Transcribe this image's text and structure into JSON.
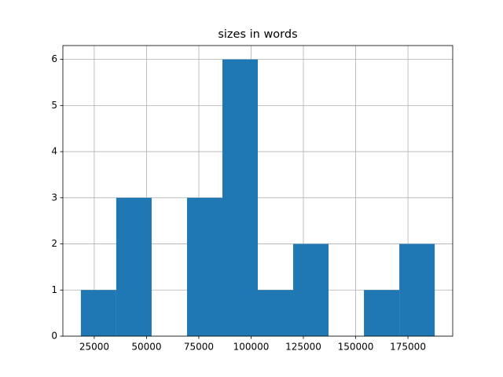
{
  "chart_data": {
    "type": "histogram",
    "title": "sizes in words",
    "bins": [
      18600,
      35520,
      52440,
      69360,
      86280,
      103200,
      120120,
      137040,
      153960,
      170880,
      187800
    ],
    "counts": [
      1,
      3,
      0,
      3,
      6,
      1,
      2,
      0,
      1,
      2
    ],
    "color": "#1f77b4",
    "xlim": [
      10000,
      196400
    ],
    "xticks": [
      25000,
      50000,
      75000,
      100000,
      125000,
      150000,
      175000
    ],
    "ylim": [
      0,
      6.3
    ],
    "yticks": [
      0,
      1,
      2,
      3,
      4,
      5,
      6
    ],
    "grid": true
  }
}
